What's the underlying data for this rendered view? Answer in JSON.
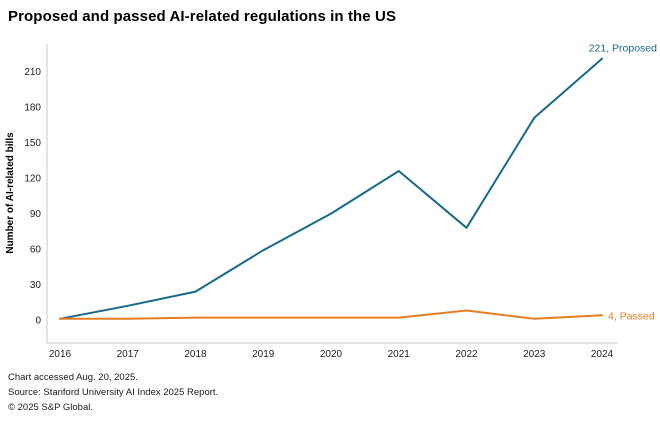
{
  "header": {
    "title": "Proposed and passed AI-related regulations in the US"
  },
  "chart_data": {
    "type": "line",
    "title": "Proposed and passed AI-related regulations in the US",
    "x": [
      2016,
      2017,
      2018,
      2019,
      2020,
      2021,
      2022,
      2023,
      2024
    ],
    "series": [
      {
        "name": "Proposed",
        "color": "#17698a",
        "values": [
          1,
          12,
          24,
          59,
          90,
          126,
          78,
          171,
          221
        ],
        "end_label": "221, Proposed"
      },
      {
        "name": "Passed",
        "color": "#e67d23",
        "values": [
          1,
          1,
          2,
          2,
          2,
          2,
          8,
          1,
          4
        ],
        "end_label": "4, Passed"
      }
    ],
    "xlabel": "",
    "ylabel": "Number of AI-related bills",
    "yticks": [
      0,
      30,
      60,
      90,
      120,
      150,
      180,
      210
    ],
    "ylim": [
      0,
      232
    ],
    "grid": false,
    "legend": "end-of-line labels",
    "axis_color": "#c9c9c9",
    "tick_text_color": "#222222"
  },
  "footer": {
    "lines": [
      "Chart accessed Aug. 20, 2025.",
      "Source: Stanford University AI Index 2025 Report.",
      "© 2025 S&P Global."
    ]
  }
}
